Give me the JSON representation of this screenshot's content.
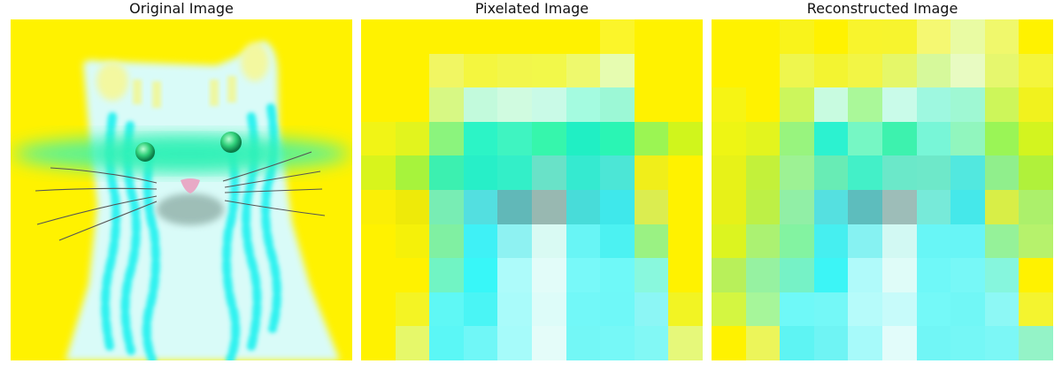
{
  "panels": {
    "original": {
      "title": "Original Image"
    },
    "pixelated": {
      "title": "Pixelated Image"
    },
    "reconstructed": {
      "title": "Reconstructed Image"
    }
  },
  "palette": {
    "background_yellow": "#fff200",
    "cyan": "#2ff2f0",
    "pale_cyan": "#d9fbf8",
    "mint": "#3af3b0",
    "nose_pink": "#e8a9c6",
    "whisker": "#555555"
  },
  "pixel_grids": {
    "pixelated": [
      [
        "#fff200",
        "#fff200",
        "#fff200",
        "#fff200",
        "#fff200",
        "#fff200",
        "#fff200",
        "#fbf52a",
        "#fff200",
        "#fff200"
      ],
      [
        "#fff200",
        "#fff200",
        "#f1f663",
        "#f4f63f",
        "#f2f64b",
        "#f2f84a",
        "#eef96d",
        "#e6fcb0",
        "#fff200",
        "#fff200"
      ],
      [
        "#fff200",
        "#fff200",
        "#d7f884",
        "#c2fadc",
        "#d0fbe0",
        "#c9fae7",
        "#a4fbe0",
        "#9cf8d6",
        "#fff200",
        "#fff200"
      ],
      [
        "#f1f416",
        "#e2f41e",
        "#8bf47d",
        "#2cf4c6",
        "#3ff4c1",
        "#36f6ac",
        "#20efc4",
        "#2af5b4",
        "#9bf553",
        "#d0f51c"
      ],
      [
        "#d8f41c",
        "#a7f33c",
        "#3cf0b0",
        "#27efc8",
        "#33efc8",
        "#69e2c8",
        "#35ead0",
        "#4ce6d6",
        "#f0ee1a",
        "#fff200"
      ],
      [
        "#fbef06",
        "#eeea09",
        "#78edb4",
        "#53dfe0",
        "#61b8b8",
        "#98b8b1",
        "#48dcd9",
        "#3fe8eb",
        "#dbed50",
        "#fff200"
      ],
      [
        "#fff200",
        "#f5f109",
        "#80f0a2",
        "#3ff1f6",
        "#8ef2f2",
        "#d9faf3",
        "#68f5f5",
        "#4cf2f2",
        "#9af283",
        "#fff200"
      ],
      [
        "#fff200",
        "#fff200",
        "#71f4c4",
        "#38f7f8",
        "#adfbfa",
        "#e2fcf9",
        "#78f9f9",
        "#6ff9f8",
        "#89f8dd",
        "#fff200"
      ],
      [
        "#fff200",
        "#f4f424",
        "#5ff8f5",
        "#4af5f5",
        "#a9fbfa",
        "#ddfcf9",
        "#72f8f8",
        "#6ff8f8",
        "#8cf6f5",
        "#f2f423"
      ],
      [
        "#fff200",
        "#e6f86a",
        "#5bf7f6",
        "#70f7f7",
        "#a6fbfa",
        "#e4fcf9",
        "#73f7f6",
        "#76f8f7",
        "#82f8f5",
        "#e6f87a"
      ]
    ],
    "reconstructed": [
      [
        "#fff200",
        "#fff200",
        "#f9f31b",
        "#fff200",
        "#f8f42d",
        "#f7f42e",
        "#f5f872",
        "#e9fba3",
        "#f0f86c",
        "#fff200"
      ],
      [
        "#fff200",
        "#fff200",
        "#eef64e",
        "#f3f431",
        "#f2f545",
        "#e5f769",
        "#d6f99b",
        "#e8fbc2",
        "#e6f76e",
        "#f4f53c"
      ],
      [
        "#f6f414",
        "#fff200",
        "#ccf65c",
        "#c8fbe0",
        "#aaf899",
        "#c9fbe9",
        "#9ef8e0",
        "#9ff8d3",
        "#cdf65a",
        "#f1f21e"
      ],
      [
        "#eef514",
        "#e3f41e",
        "#98f47e",
        "#2cf2d0",
        "#76f7c4",
        "#3df2ae",
        "#78f6d7",
        "#91f6be",
        "#9af556",
        "#d3f41f"
      ],
      [
        "#e7f218",
        "#c3f13a",
        "#9df294",
        "#68ecb5",
        "#43f0c8",
        "#6be8c9",
        "#6ee8c9",
        "#52e8df",
        "#90ef8c",
        "#b0f13b"
      ],
      [
        "#e7f118",
        "#bdf046",
        "#91efa6",
        "#55e0e0",
        "#5dbdbd",
        "#9dbdb8",
        "#77ead9",
        "#45e8ea",
        "#d8ee47",
        "#acf06b"
      ],
      [
        "#dcf420",
        "#abf272",
        "#83f3a1",
        "#46eff0",
        "#86f2f2",
        "#d2f9f3",
        "#68f6f6",
        "#68f5f6",
        "#95f299",
        "#b6f26c"
      ],
      [
        "#b8f05a",
        "#96f2a1",
        "#76f2c6",
        "#3cf5f6",
        "#b0fafa",
        "#dffcf8",
        "#6ff8f8",
        "#77f8f7",
        "#86f6dd",
        "#fff200"
      ],
      [
        "#d4f641",
        "#a6f69a",
        "#6ff9f8",
        "#74f8f7",
        "#b6fbfa",
        "#c7fbfa",
        "#74f9f8",
        "#71f7f6",
        "#8df8f5",
        "#f4f42f"
      ],
      [
        "#fff200",
        "#ecf55a",
        "#5ef4f3",
        "#6ff4f4",
        "#a7fafa",
        "#e2fcfa",
        "#71f6f6",
        "#75f7f6",
        "#7cf7f6",
        "#94f3c7"
      ]
    ]
  }
}
